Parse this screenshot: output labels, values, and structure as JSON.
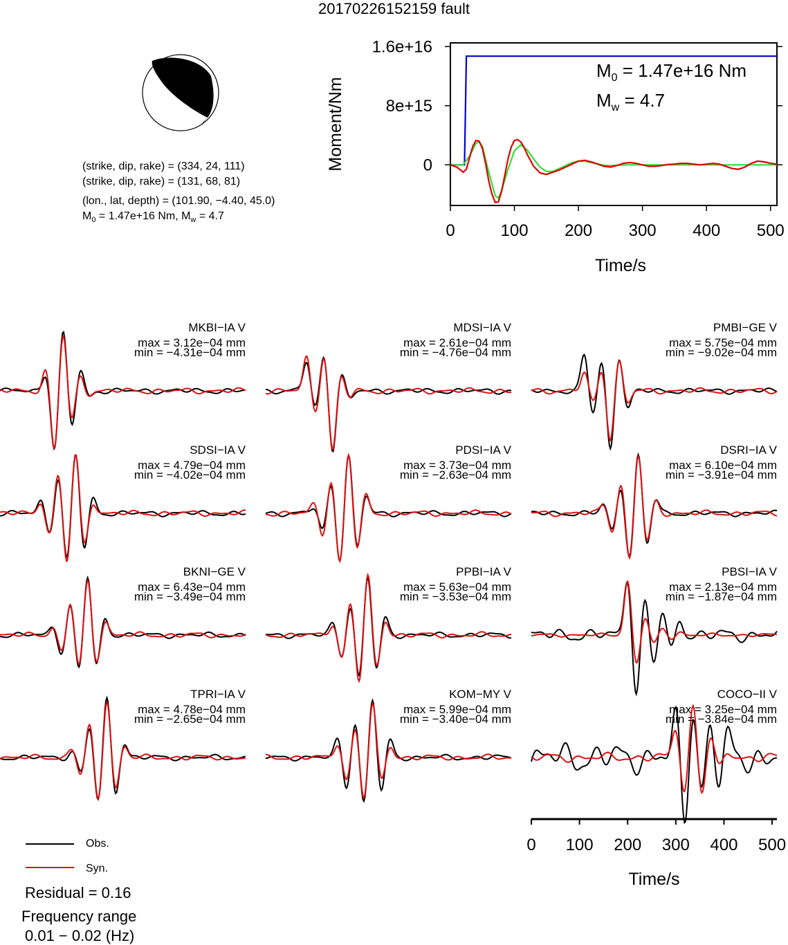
{
  "figure": {
    "title": "20170226152159 fault"
  },
  "mechanism": {
    "plane1": "(strike, dip, rake) = (334, 24, 111)",
    "plane2": "(strike, dip, rake) = (131, 68, 81)",
    "location": "(lon., lat, depth) = (101.90, −4.40, 45.0)",
    "moment_line": "M0 = 1.47e+16 Nm, Mw = 4.7",
    "m0_text": "1.47e+16 Nm",
    "mw_text": "4.7"
  },
  "chart_data": [
    {
      "type": "line",
      "title": "",
      "xlabel": "Time/s",
      "ylabel": "Moment/Nm",
      "xlim": [
        0,
        510
      ],
      "ylim": [
        -5500000000000000.0,
        1.65e+16
      ],
      "xticks": [
        0,
        100,
        200,
        300,
        400,
        500
      ],
      "yticks": [
        0,
        8000000000000000.0,
        1.6e+16
      ],
      "ytick_labels": [
        "0",
        "8e+15",
        "1.6e+16"
      ],
      "annotation_m0": "M0 = 1.47e+16 Nm",
      "annotation_mw": "Mw = 4.7",
      "series": [
        {
          "color": "#0000cc",
          "x": [
            0,
            22,
            25,
            510
          ],
          "y": [
            0,
            0,
            1.47e+16,
            1.47e+16
          ]
        },
        {
          "color": "#33dd33",
          "x": [
            0,
            20,
            30,
            40,
            45,
            50,
            60,
            70,
            75,
            80,
            90,
            100,
            110,
            120,
            130,
            140,
            150,
            160,
            170,
            180,
            190,
            200,
            210,
            220,
            230,
            240,
            250,
            260,
            280,
            300,
            320,
            340,
            360,
            380,
            400,
            420,
            440,
            460,
            480,
            500,
            510
          ],
          "y": [
            0,
            0,
            1200000000000000.0,
            2900000000000000.0,
            3100000000000000.0,
            2500000000000000.0,
            -1000000000000000.0,
            -4200000000000000.0,
            -4500000000000000.0,
            -3500000000000000.0,
            -600000000000000.0,
            1900000000000000.0,
            2700000000000000.0,
            2000000000000000.0,
            800000000000000.0,
            -300000000000000.0,
            -900000000000000.0,
            -900000000000000.0,
            -500000000000000.0,
            -100000000000000.0,
            300000000000000.0,
            500000000000000.0,
            500000000000000.0,
            300000000000000.0,
            100000000000000.0,
            -50000000000000.0,
            -100000000000000.0,
            -50000000000000.0,
            0,
            0,
            0,
            0,
            0,
            0,
            0,
            0,
            0,
            0,
            0,
            0,
            0
          ]
        },
        {
          "color": "#dd0000",
          "x": [
            0,
            10,
            20,
            25,
            30,
            35,
            40,
            45,
            50,
            55,
            60,
            65,
            70,
            75,
            80,
            85,
            90,
            95,
            100,
            105,
            110,
            115,
            120,
            130,
            140,
            150,
            160,
            170,
            180,
            190,
            200,
            210,
            220,
            230,
            240,
            250,
            260,
            270,
            280,
            290,
            300,
            310,
            320,
            330,
            340,
            350,
            360,
            370,
            380,
            390,
            400,
            410,
            420,
            430,
            440,
            450,
            460,
            470,
            480,
            490,
            500,
            510
          ],
          "y": [
            0,
            -300000000000000.0,
            -1000000000000000.0,
            -600000000000000.0,
            1000000000000000.0,
            2500000000000000.0,
            3300000000000000.0,
            3200000000000000.0,
            2200000000000000.0,
            200000000000000.0,
            -2200000000000000.0,
            -4000000000000000.0,
            -5100000000000000.0,
            -5000000000000000.0,
            -3600000000000000.0,
            -1400000000000000.0,
            800000000000000.0,
            2400000000000000.0,
            3300000000000000.0,
            3400000000000000.0,
            3100000000000000.0,
            2400000000000000.0,
            1400000000000000.0,
            -200000000000000.0,
            -1100000000000000.0,
            -1300000000000000.0,
            -1000000000000000.0,
            -700000000000000.0,
            -300000000000000.0,
            100000000000000.0,
            500000000000000.0,
            600000000000000.0,
            400000000000000.0,
            100000000000000.0,
            -200000000000000.0,
            -300000000000000.0,
            -100000000000000.0,
            200000000000000.0,
            300000000000000.0,
            200000000000000.0,
            0,
            -200000000000000.0,
            -200000000000000.0,
            -100000000000000.0,
            50000000000000.0,
            100000000000000.0,
            200000000000000.0,
            200000000000000.0,
            100000000000000.0,
            0,
            100000000000000.0,
            200000000000000.0,
            100000000000000.0,
            -200000000000000.0,
            -500000000000000.0,
            -600000000000000.0,
            -300000000000000.0,
            200000000000000.0,
            500000000000000.0,
            400000000000000.0,
            200000000000000.0,
            100000000000000.0
          ]
        }
      ]
    },
    {
      "type": "line",
      "title": "",
      "xlabel": "Time/s",
      "xlim": [
        0,
        510
      ],
      "xticks": [
        0,
        100,
        200,
        300,
        400,
        500
      ],
      "legend": {
        "obs": "Obs.",
        "syn": "Syn."
      },
      "stations": [
        {
          "name": "MKBI−IA V",
          "max": "max = 3.12e−04 mm",
          "min": "min = −4.31e−04 mm",
          "onset": 95,
          "obs_amp": [
            0.3,
            -1.0,
            1.0,
            -0.6,
            0.35,
            -0.1
          ],
          "syn_amp": [
            0.35,
            -1.0,
            0.95,
            -0.5,
            0.25,
            -0.05
          ]
        },
        {
          "name": "MDSI−IA V",
          "max": "max = 2.61e−04 mm",
          "min": "min = −4.76e−04 mm",
          "onset": 85,
          "obs_amp": [
            0.5,
            -0.3,
            0.6,
            -1.0,
            0.3,
            -0.15
          ],
          "syn_amp": [
            0.55,
            -0.35,
            0.6,
            -1.0,
            0.25,
            -0.1
          ]
        },
        {
          "name": "PMBI−GE V",
          "max": "max = 5.75e−04 mm",
          "min": "min = −9.02e−04 mm",
          "onset": 110,
          "obs_amp": [
            0.6,
            -0.4,
            0.5,
            -1.0,
            0.6,
            -0.3
          ],
          "syn_amp": [
            0.3,
            -0.2,
            0.35,
            -0.8,
            0.5,
            -0.2
          ]
        },
        {
          "name": "SDSI−IA V",
          "max": "max = 4.79e−04 mm",
          "min": "min = −4.02e−04 mm",
          "onset": 85,
          "obs_amp": [
            0.2,
            -0.3,
            0.6,
            -0.8,
            1.0,
            -0.6,
            0.25
          ],
          "syn_amp": [
            0.2,
            -0.35,
            0.65,
            -0.85,
            1.0,
            -0.55,
            0.2
          ]
        },
        {
          "name": "PDSI−IA V",
          "max": "max = 3.73e−04 mm",
          "min": "min = −2.63e−04 mm",
          "onset": 100,
          "obs_amp": [
            0.1,
            -0.3,
            0.5,
            -0.8,
            1.0,
            -0.6,
            0.3
          ],
          "syn_amp": [
            0.15,
            -0.35,
            0.55,
            -0.85,
            1.0,
            -0.6,
            0.3
          ]
        },
        {
          "name": "DSRI−IA V",
          "max": "max = 6.10e−04 mm",
          "min": "min = −3.91e−04 mm",
          "onset": 150,
          "obs_amp": [
            0.15,
            -0.3,
            0.45,
            -0.75,
            1.0,
            -0.55,
            0.25
          ],
          "syn_amp": [
            0.15,
            -0.3,
            0.5,
            -0.8,
            1.0,
            -0.5,
            0.2
          ]
        },
        {
          "name": "BKNI−GE V",
          "max": "max = 6.43e−04 mm",
          "min": "min = −3.49e−04 mm",
          "onset": 110,
          "obs_amp": [
            0.15,
            -0.3,
            0.5,
            -0.6,
            1.0,
            -0.55,
            0.3
          ],
          "syn_amp": [
            0.15,
            -0.3,
            0.55,
            -0.55,
            0.9,
            -0.45,
            0.25
          ]
        },
        {
          "name": "PPBI−IA V",
          "max": "max = 5.63e−04 mm",
          "min": "min = −3.53e−04 mm",
          "onset": 140,
          "obs_amp": [
            0.2,
            -0.35,
            0.5,
            -0.75,
            1.0,
            -0.6,
            0.3
          ],
          "syn_amp": [
            0.2,
            -0.4,
            0.55,
            -0.8,
            1.0,
            -0.55,
            0.25
          ]
        },
        {
          "name": "PBSI−IA V",
          "max": "max = 2.13e−04 mm",
          "min": "min = −1.87e−04 mm",
          "onset": 200,
          "obs_amp": [
            1.0,
            -1.0,
            0.6,
            -0.5,
            0.4,
            -0.3,
            0.3
          ],
          "syn_amp": [
            0.9,
            -0.5,
            0.3,
            -0.15,
            0.1,
            -0.05,
            0.05
          ]
        },
        {
          "name": "TPRI−IA V",
          "max": "max = 4.78e−04 mm",
          "min": "min = −2.65e−04 mm",
          "onset": 150,
          "obs_amp": [
            0.1,
            -0.25,
            0.5,
            -0.75,
            1.0,
            -0.6,
            0.25
          ],
          "syn_amp": [
            0.15,
            -0.3,
            0.55,
            -0.75,
            1.0,
            -0.55,
            0.2
          ]
        },
        {
          "name": "KOM−MY V",
          "max": "max = 5.99e−04 mm",
          "min": "min = −3.40e−04 mm",
          "onset": 150,
          "obs_amp": [
            0.3,
            -0.5,
            0.6,
            -0.8,
            1.0,
            -0.6,
            0.3
          ],
          "syn_amp": [
            0.25,
            -0.4,
            0.5,
            -0.7,
            0.9,
            -0.4,
            0.2
          ]
        },
        {
          "name": "COCO−II V",
          "max": "max = 3.25e−04 mm",
          "min": "min = −3.84e−04 mm",
          "onset": 300,
          "obs_amp": [
            0.6,
            -1.0,
            0.8,
            -0.5,
            0.5,
            -0.4,
            0.3
          ],
          "syn_amp": [
            0.5,
            -0.6,
            0.9,
            -0.6,
            0.35,
            -0.2,
            0.1
          ]
        }
      ]
    }
  ],
  "residual": "Residual = 0.16",
  "frequency_label": "Frequency range",
  "frequency_value": "0.01 − 0.02 (Hz)",
  "colors": {
    "obs": "#000000",
    "syn": "#dd1111",
    "moment": "#0000cc",
    "stf_green": "#33dd33"
  }
}
